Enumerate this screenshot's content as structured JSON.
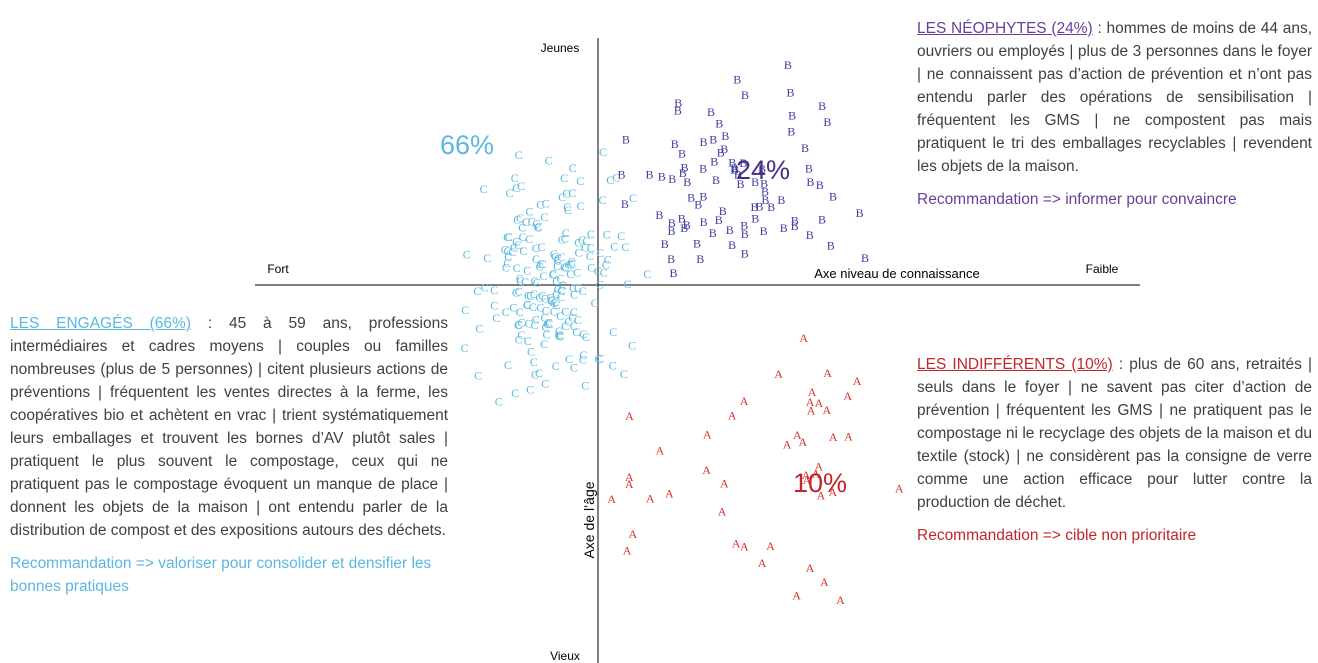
{
  "axes": {
    "top": "Jeunes",
    "bottom": "Vieux",
    "left": "Fort",
    "right": "Faible",
    "x_title": "Axe niveau de connaissance",
    "y_title": "Axe de l’âge"
  },
  "groups": [
    {
      "letter": "C",
      "share": "66%",
      "title": "LES ENGAGÉS (66%)",
      "text": ": 45 à 59 ans, professions intermédiaires et cadres moyens | couples ou familles nombreuses (plus de 5 personnes) | citent plusieurs actions de préventions | fréquentent les ventes directes à la ferme, les coopératives bio et achètent en vrac | trient systématiquement leurs emballages et trouvent les bornes d’AV plutôt sales | pratiquent le plus souvent le compostage, ceux qui ne pratiquent pas le compostage évoquent un manque de place | donnent les objets de la maison | ont entendu parler de la distribution de compost et des expositions autours des déchets.",
      "recommendation": "Recommandation => valoriser pour consolider et densifier les bonnes pratiques"
    },
    {
      "letter": "B",
      "share": "24%",
      "title": "LES NÉOPHYTES (24%)",
      "text": ": hommes de moins de 44 ans, ouvriers ou employés | plus de 3 personnes dans le foyer | ne connaissent pas d’action de prévention et n’ont pas entendu parler des opérations de sensibilisation | fréquentent les GMS | ne compostent pas mais pratiquent le tri des emballages recyclables | revendent les objets de la maison.",
      "recommendation": "Recommandation => informer pour convaincre"
    },
    {
      "letter": "A",
      "share": "10%",
      "title": "LES INDIFFÉRENTS (10%)",
      "text": ": plus de 60 ans, retraités | seuls dans le foyer | ne savent pas citer d’action de prévention | fréquentent les GMS | ne pratiquent pas le compostage ni le recyclage des objets de la maison et du textile (stock) | ne considèrent pas la consigne de verre comme une action efficace pour lutter contre la production de déchet.",
      "recommendation": "Recommandation => cible non prioritaire"
    }
  ]
}
